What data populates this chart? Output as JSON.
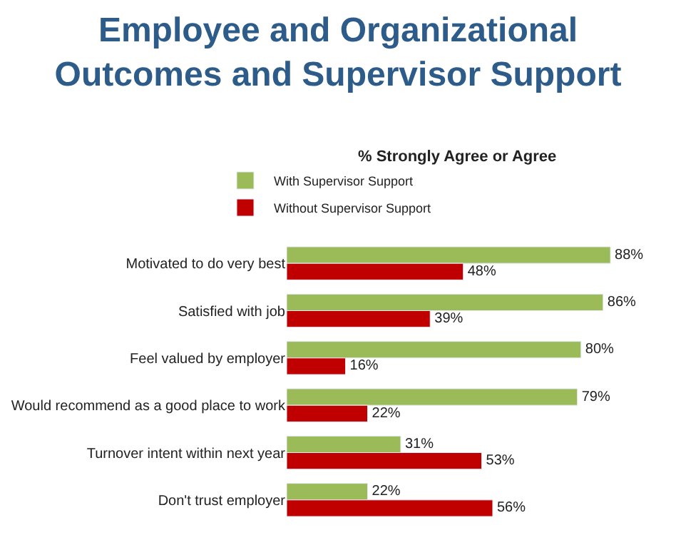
{
  "chart_data": {
    "type": "bar",
    "orientation": "horizontal",
    "title": "Employee and Organizational\nOutcomes and Supervisor Support",
    "subtitle": "% Strongly Agree or Agree",
    "categories": [
      "Motivated to do very best",
      "Satisfied with job",
      "Feel valued by employer",
      "Would recommend as a good place to work",
      "Turnover intent within next year",
      "Don't trust employer"
    ],
    "series": [
      {
        "name": "With Supervisor Support",
        "color": "#9bbb59",
        "values": [
          88,
          86,
          80,
          79,
          31,
          22
        ],
        "value_labels": [
          "88%",
          "86%",
          "80%",
          "79%",
          "31%",
          "22%"
        ]
      },
      {
        "name": "Without Supervisor Support",
        "color": "#c00000",
        "values": [
          48,
          39,
          16,
          22,
          53,
          56
        ],
        "value_labels": [
          "48%",
          "39%",
          "16%",
          "22%",
          "53%",
          "56%"
        ]
      }
    ],
    "legend": "top",
    "tick_labels": "y"
  }
}
